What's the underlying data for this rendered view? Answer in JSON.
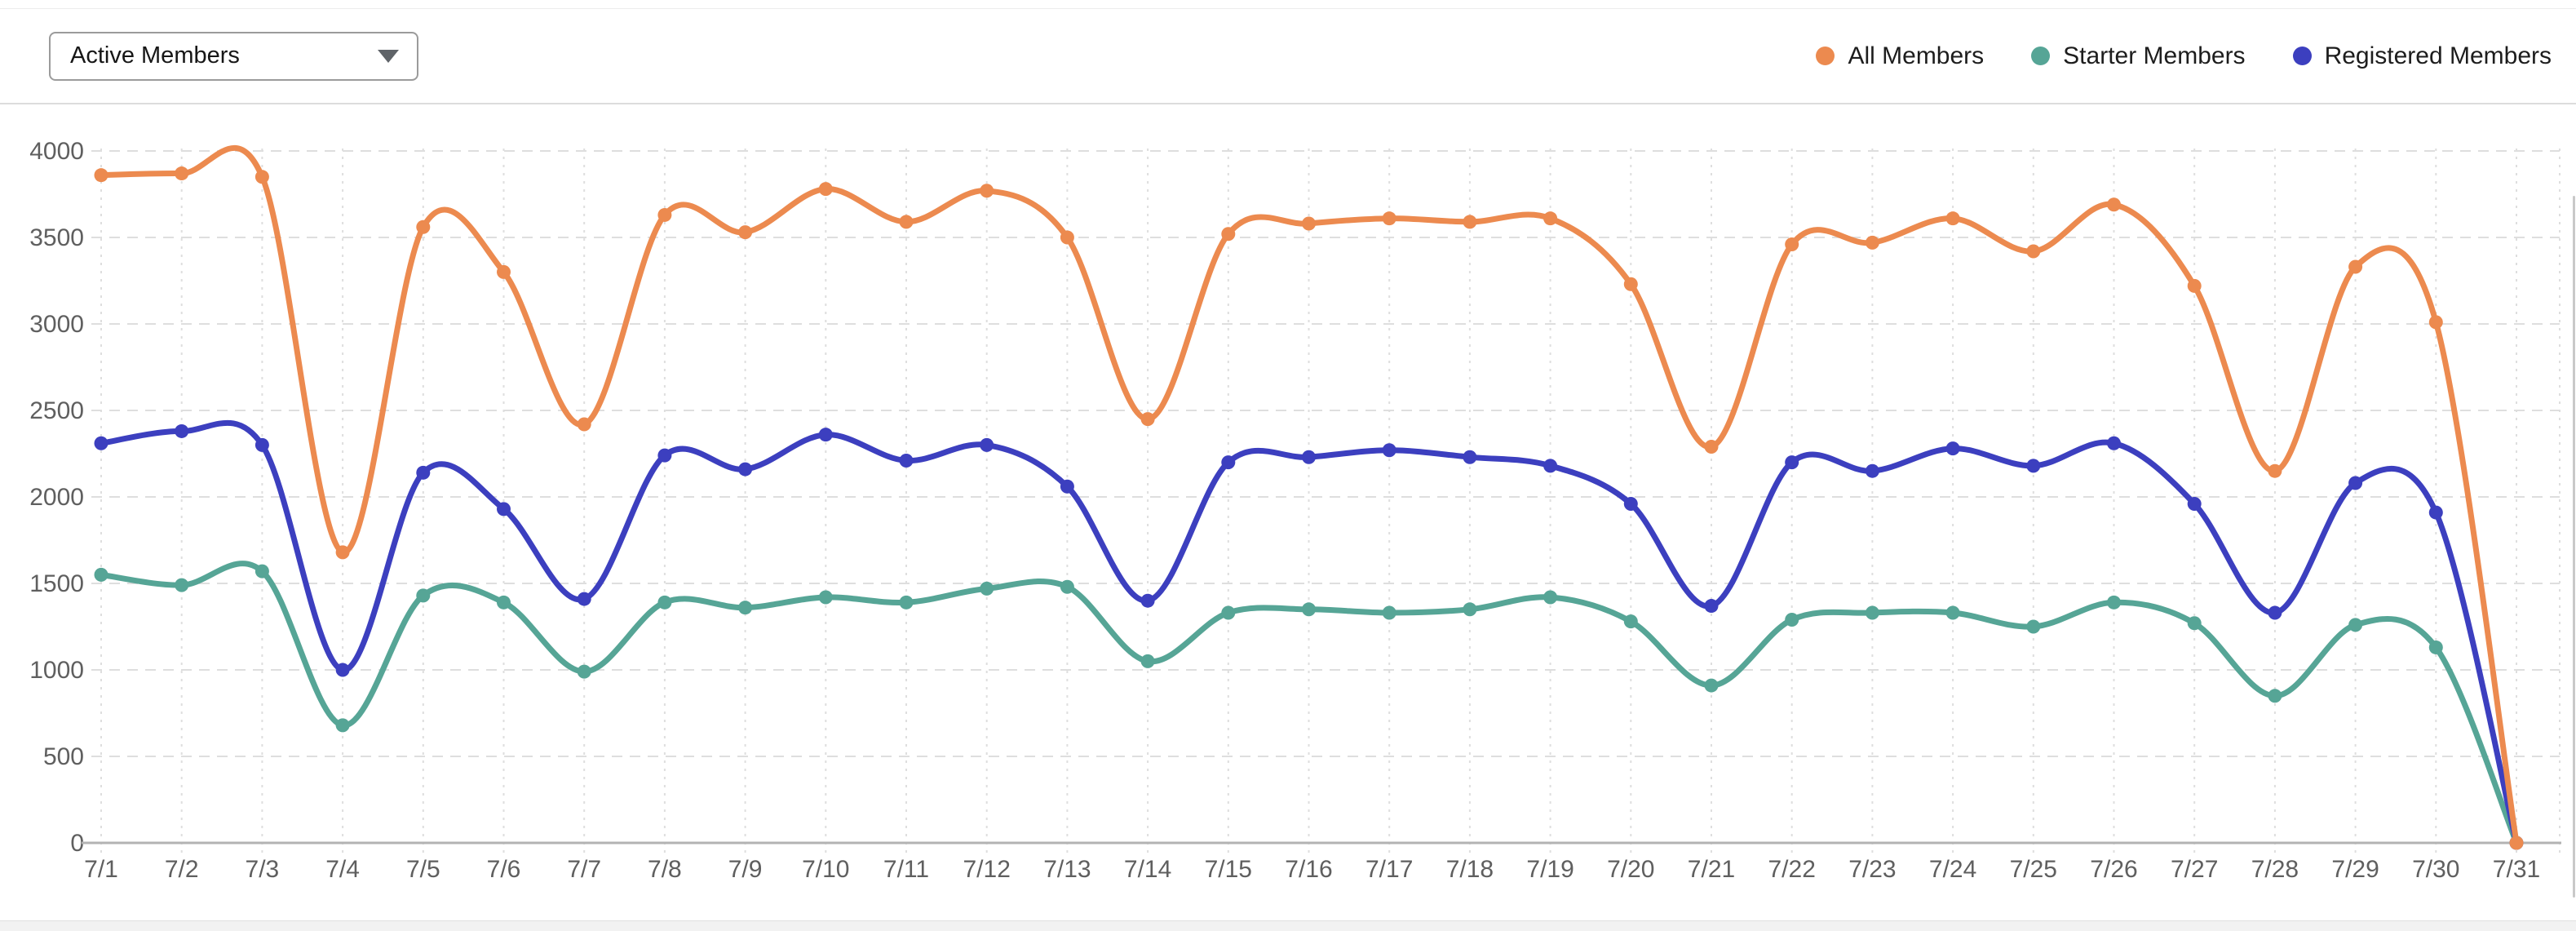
{
  "header": {
    "dropdown": {
      "value": "Active Members"
    }
  },
  "axis_colors": {
    "tick_label": "#5f5f5f",
    "grid": "#dedede",
    "axis_line": "#b3b3b3"
  },
  "chart_data": {
    "type": "line",
    "title": "",
    "xlabel": "",
    "ylabel": "",
    "x": [
      "7/1",
      "7/2",
      "7/3",
      "7/4",
      "7/5",
      "7/6",
      "7/7",
      "7/8",
      "7/9",
      "7/10",
      "7/11",
      "7/12",
      "7/13",
      "7/14",
      "7/15",
      "7/16",
      "7/17",
      "7/18",
      "7/19",
      "7/20",
      "7/21",
      "7/22",
      "7/23",
      "7/24",
      "7/25",
      "7/26",
      "7/27",
      "7/28",
      "7/29",
      "7/30",
      "7/31"
    ],
    "series": [
      {
        "name": "All Members",
        "color": "#EC8A4F",
        "values": [
          3860,
          3870,
          3850,
          1680,
          3560,
          3300,
          2420,
          3630,
          3530,
          3780,
          3590,
          3770,
          3500,
          2450,
          3520,
          3580,
          3610,
          3590,
          3610,
          3230,
          2290,
          3460,
          3470,
          3610,
          3420,
          3690,
          3220,
          2150,
          3330,
          3010,
          0
        ]
      },
      {
        "name": "Starter Members",
        "color": "#56A596",
        "values": [
          1550,
          1490,
          1570,
          680,
          1430,
          1390,
          990,
          1390,
          1360,
          1420,
          1390,
          1470,
          1480,
          1050,
          1330,
          1350,
          1330,
          1350,
          1420,
          1280,
          910,
          1290,
          1330,
          1330,
          1250,
          1390,
          1270,
          850,
          1260,
          1130,
          0
        ]
      },
      {
        "name": "Registered Members",
        "color": "#3C3FBF",
        "values": [
          2310,
          2380,
          2300,
          1000,
          2140,
          1930,
          1410,
          2240,
          2160,
          2360,
          2210,
          2300,
          2060,
          1400,
          2200,
          2230,
          2270,
          2230,
          2180,
          1960,
          1370,
          2200,
          2150,
          2280,
          2180,
          2310,
          1960,
          1330,
          2080,
          1910,
          0
        ]
      }
    ],
    "legend_order": [
      "All Members",
      "Starter Members",
      "Registered Members"
    ],
    "legend_position": "top-right",
    "ylim": [
      0,
      4000
    ],
    "yticks": [
      0,
      500,
      1000,
      1500,
      2000,
      2500,
      3000,
      3500,
      4000
    ],
    "grid": true
  }
}
